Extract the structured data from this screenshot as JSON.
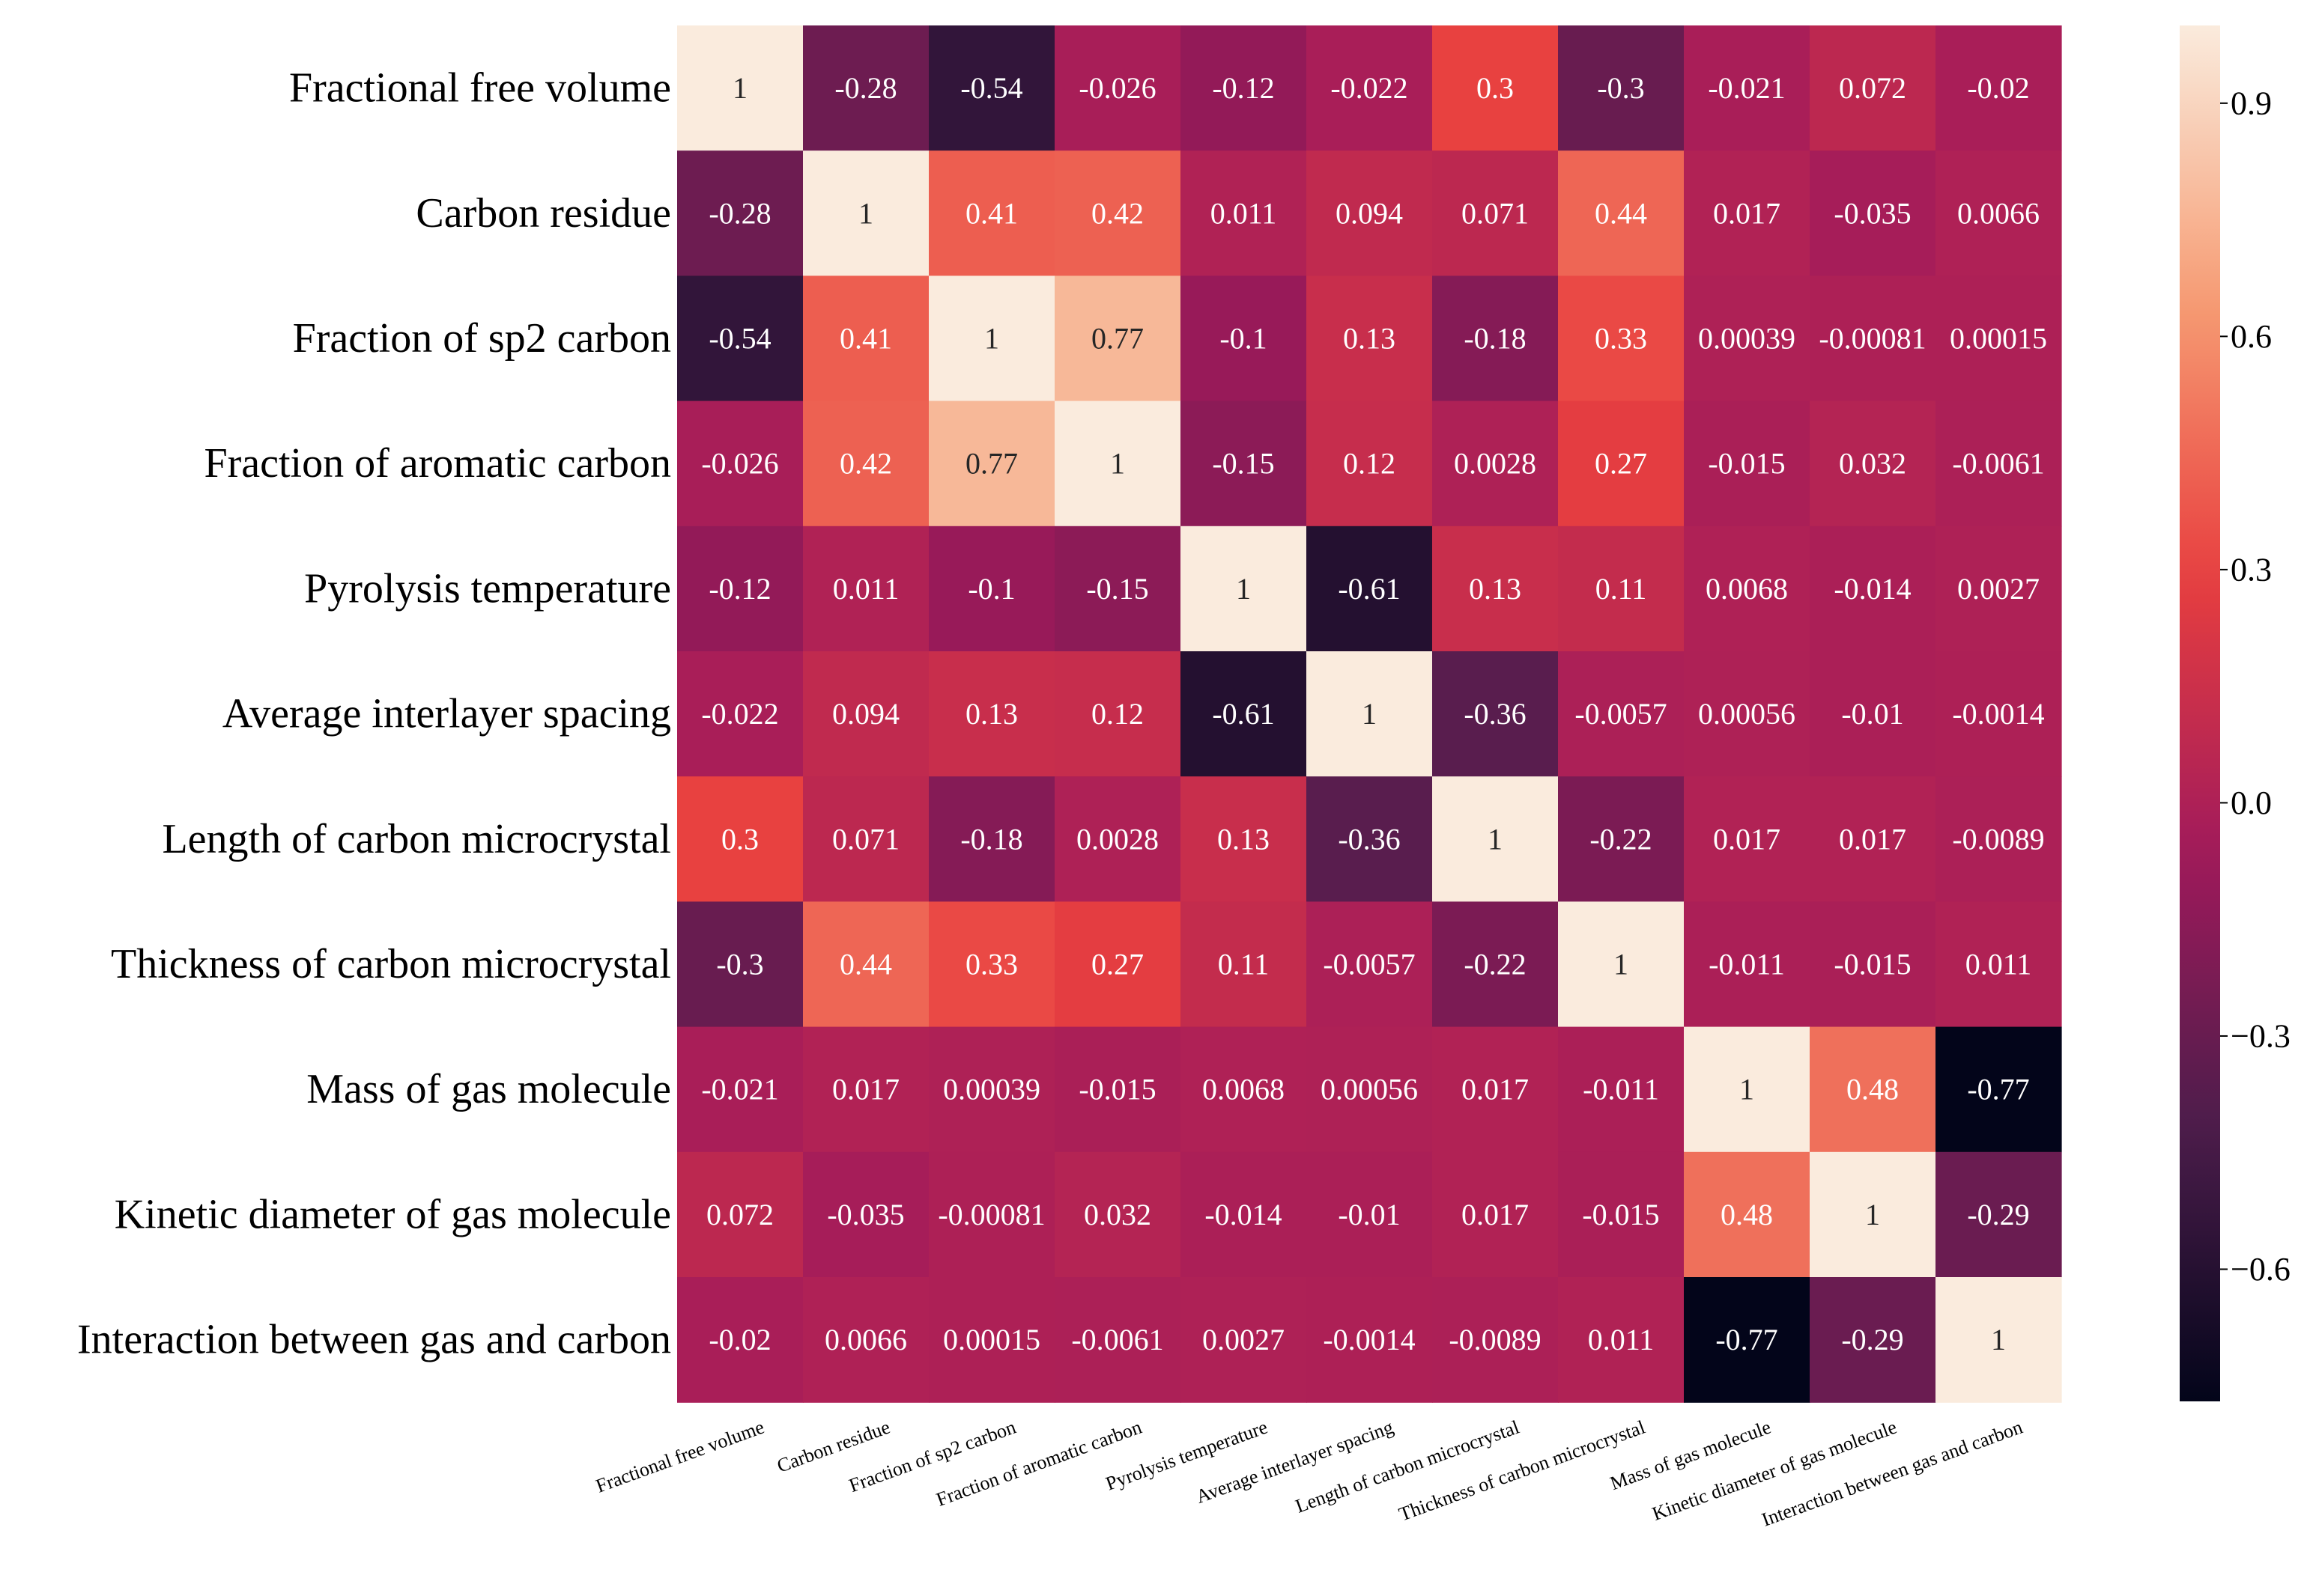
{
  "chart_data": {
    "type": "heatmap",
    "title": "",
    "xlabel": "",
    "ylabel": "",
    "labels": [
      "Fractional free volume",
      "Carbon residue",
      "Fraction of sp2 carbon",
      "Fraction of aromatic carbon",
      "Pyrolysis temperature",
      "Average interlayer spacing",
      "Length of carbon microcrystal",
      "Thickness of carbon microcrystal",
      "Mass of gas molecule",
      "Kinetic diameter of gas molecule",
      "Interaction between gas and carbon"
    ],
    "values": [
      [
        1,
        -0.28,
        -0.54,
        -0.026,
        -0.12,
        -0.022,
        0.3,
        -0.3,
        -0.021,
        0.072,
        -0.02
      ],
      [
        -0.28,
        1,
        0.41,
        0.42,
        0.011,
        0.094,
        0.071,
        0.44,
        0.017,
        -0.035,
        0.0066
      ],
      [
        -0.54,
        0.41,
        1,
        0.77,
        -0.1,
        0.13,
        -0.18,
        0.33,
        0.00039,
        -0.00081,
        0.00015
      ],
      [
        -0.026,
        0.42,
        0.77,
        1,
        -0.15,
        0.12,
        0.0028,
        0.27,
        -0.015,
        0.032,
        -0.0061
      ],
      [
        -0.12,
        0.011,
        -0.1,
        -0.15,
        1,
        -0.61,
        0.13,
        0.11,
        0.0068,
        -0.014,
        0.0027
      ],
      [
        -0.022,
        0.094,
        0.13,
        0.12,
        -0.61,
        1,
        -0.36,
        -0.0057,
        0.00056,
        -0.01,
        -0.0014
      ],
      [
        0.3,
        0.071,
        -0.18,
        0.0028,
        0.13,
        -0.36,
        1,
        -0.22,
        0.017,
        0.017,
        -0.0089
      ],
      [
        -0.3,
        0.44,
        0.33,
        0.27,
        0.11,
        -0.0057,
        -0.22,
        1,
        -0.011,
        -0.015,
        0.011
      ],
      [
        -0.021,
        0.017,
        0.00039,
        -0.015,
        0.0068,
        0.00056,
        0.017,
        -0.011,
        1,
        0.48,
        -0.77
      ],
      [
        0.072,
        -0.035,
        -0.00081,
        0.032,
        -0.014,
        -0.01,
        0.017,
        -0.015,
        0.48,
        1,
        -0.29
      ],
      [
        -0.02,
        0.0066,
        0.00015,
        -0.0061,
        0.0027,
        -0.0014,
        -0.0089,
        0.011,
        -0.77,
        -0.29,
        1
      ]
    ],
    "colorbar": {
      "range": [
        -0.77,
        1
      ],
      "ticks": [
        -0.6,
        -0.3,
        0.0,
        0.3,
        0.6,
        0.9
      ],
      "tick_labels": [
        "−0.6",
        "−0.3",
        "0.0",
        "0.3",
        "0.6",
        "0.9"
      ]
    },
    "colormap": [
      "#03051a",
      "#4c1d4b",
      "#a11a5b",
      "#e83f3f",
      "#f69c73",
      "#faebdd"
    ]
  }
}
